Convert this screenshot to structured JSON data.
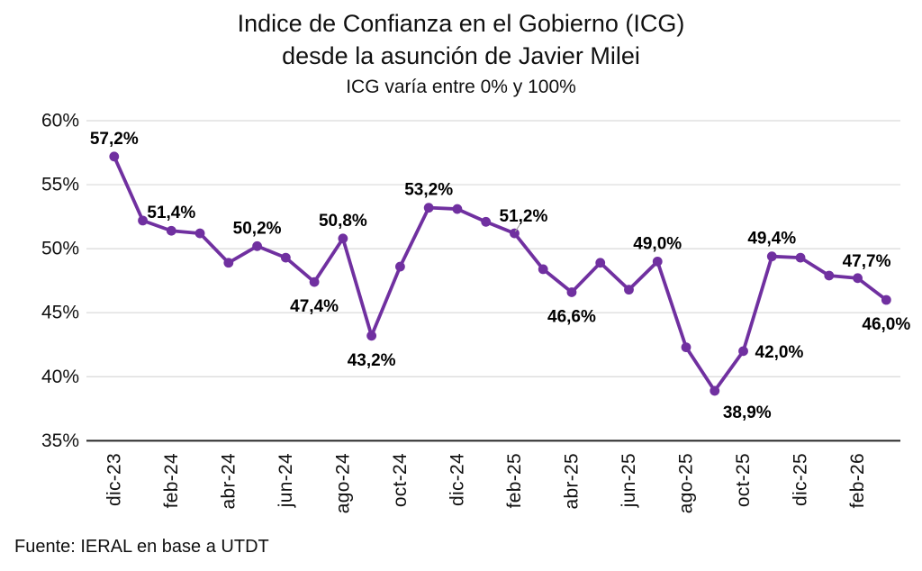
{
  "header": {
    "line1": "Indice de Confianza en el Gobierno (ICG)",
    "line2": "desde la asunción de Javier Milei",
    "line3": "ICG varía entre 0% y 100%"
  },
  "source_note": "Fuente: IERAL en base a UTDT",
  "colors": {
    "line": "#7030A0",
    "marker": "#7030A0",
    "grid": "#D9D9D9",
    "axis": "#262626",
    "tick_text": "#111111",
    "point_label": "#000000",
    "leader": "#A6A6A6"
  },
  "chart_data": {
    "type": "line",
    "title": "Indice de Confianza en el Gobierno (ICG) desde la asunción de Javier Milei",
    "subtitle": "ICG varía entre 0% y 100%",
    "ylabel": "",
    "xlabel": "",
    "ylim": [
      35,
      60
    ],
    "grid": true,
    "legend_position": "none",
    "yticks": [
      {
        "value": 60,
        "label": "60%"
      },
      {
        "value": 55,
        "label": "55%"
      },
      {
        "value": 50,
        "label": "50%"
      },
      {
        "value": 45,
        "label": "45%"
      },
      {
        "value": 40,
        "label": "40%"
      },
      {
        "value": 35,
        "label": "35%"
      }
    ],
    "xtick_every": 2,
    "xtick_labels": [
      "dic-23",
      "feb-24",
      "abr-24",
      "jun-24",
      "ago-24",
      "oct-24",
      "dic-24",
      "feb-25",
      "abr-25",
      "jun-25",
      "ago-25",
      "oct-25",
      "dic-25",
      "feb-26"
    ],
    "series": [
      {
        "name": "ICG",
        "points": [
          {
            "month": "dic-23",
            "value": 57.2,
            "label": "57,2%",
            "label_pos": "above"
          },
          {
            "month": "ene-24",
            "value": 52.2
          },
          {
            "month": "feb-24",
            "value": 51.4,
            "label": "51,4%",
            "label_pos": "above"
          },
          {
            "month": "mar-24",
            "value": 51.2
          },
          {
            "month": "abr-24",
            "value": 48.9
          },
          {
            "month": "may-24",
            "value": 50.2,
            "label": "50,2%",
            "label_pos": "above"
          },
          {
            "month": "jun-24",
            "value": 49.3
          },
          {
            "month": "jul-24",
            "value": 47.4,
            "label": "47,4%",
            "label_pos": "below"
          },
          {
            "month": "ago-24",
            "value": 50.8,
            "label": "50,8%",
            "label_pos": "above"
          },
          {
            "month": "sep-24",
            "value": 43.2,
            "label": "43,2%",
            "label_pos": "below"
          },
          {
            "month": "oct-24",
            "value": 48.6
          },
          {
            "month": "nov-24",
            "value": 53.2,
            "label": "53,2%",
            "label_pos": "above"
          },
          {
            "month": "dic-24",
            "value": 53.1
          },
          {
            "month": "ene-25",
            "value": 52.1
          },
          {
            "month": "feb-25",
            "value": 51.2,
            "label": "51,2%",
            "label_pos": "above-right",
            "leader": true
          },
          {
            "month": "mar-25",
            "value": 48.4
          },
          {
            "month": "abr-25",
            "value": 46.6,
            "label": "46,6%",
            "label_pos": "below"
          },
          {
            "month": "may-25",
            "value": 48.9
          },
          {
            "month": "jun-25",
            "value": 46.8
          },
          {
            "month": "jul-25",
            "value": 49.0,
            "label": "49,0%",
            "label_pos": "above"
          },
          {
            "month": "ago-25",
            "value": 42.3
          },
          {
            "month": "sep-25",
            "value": 38.9,
            "label": "38,9%",
            "label_pos": "below-right"
          },
          {
            "month": "oct-25",
            "value": 42.0,
            "label": "42,0%",
            "label_pos": "right"
          },
          {
            "month": "nov-25",
            "value": 49.4,
            "label": "49,4%",
            "label_pos": "above"
          },
          {
            "month": "dic-25",
            "value": 49.3
          },
          {
            "month": "ene-26",
            "value": 47.9
          },
          {
            "month": "feb-26",
            "value": 47.7,
            "label": "47,7%",
            "label_pos": "above-right"
          },
          {
            "month": "mar-26",
            "value": 46.0,
            "label": "46,0%",
            "label_pos": "below"
          }
        ]
      }
    ]
  }
}
